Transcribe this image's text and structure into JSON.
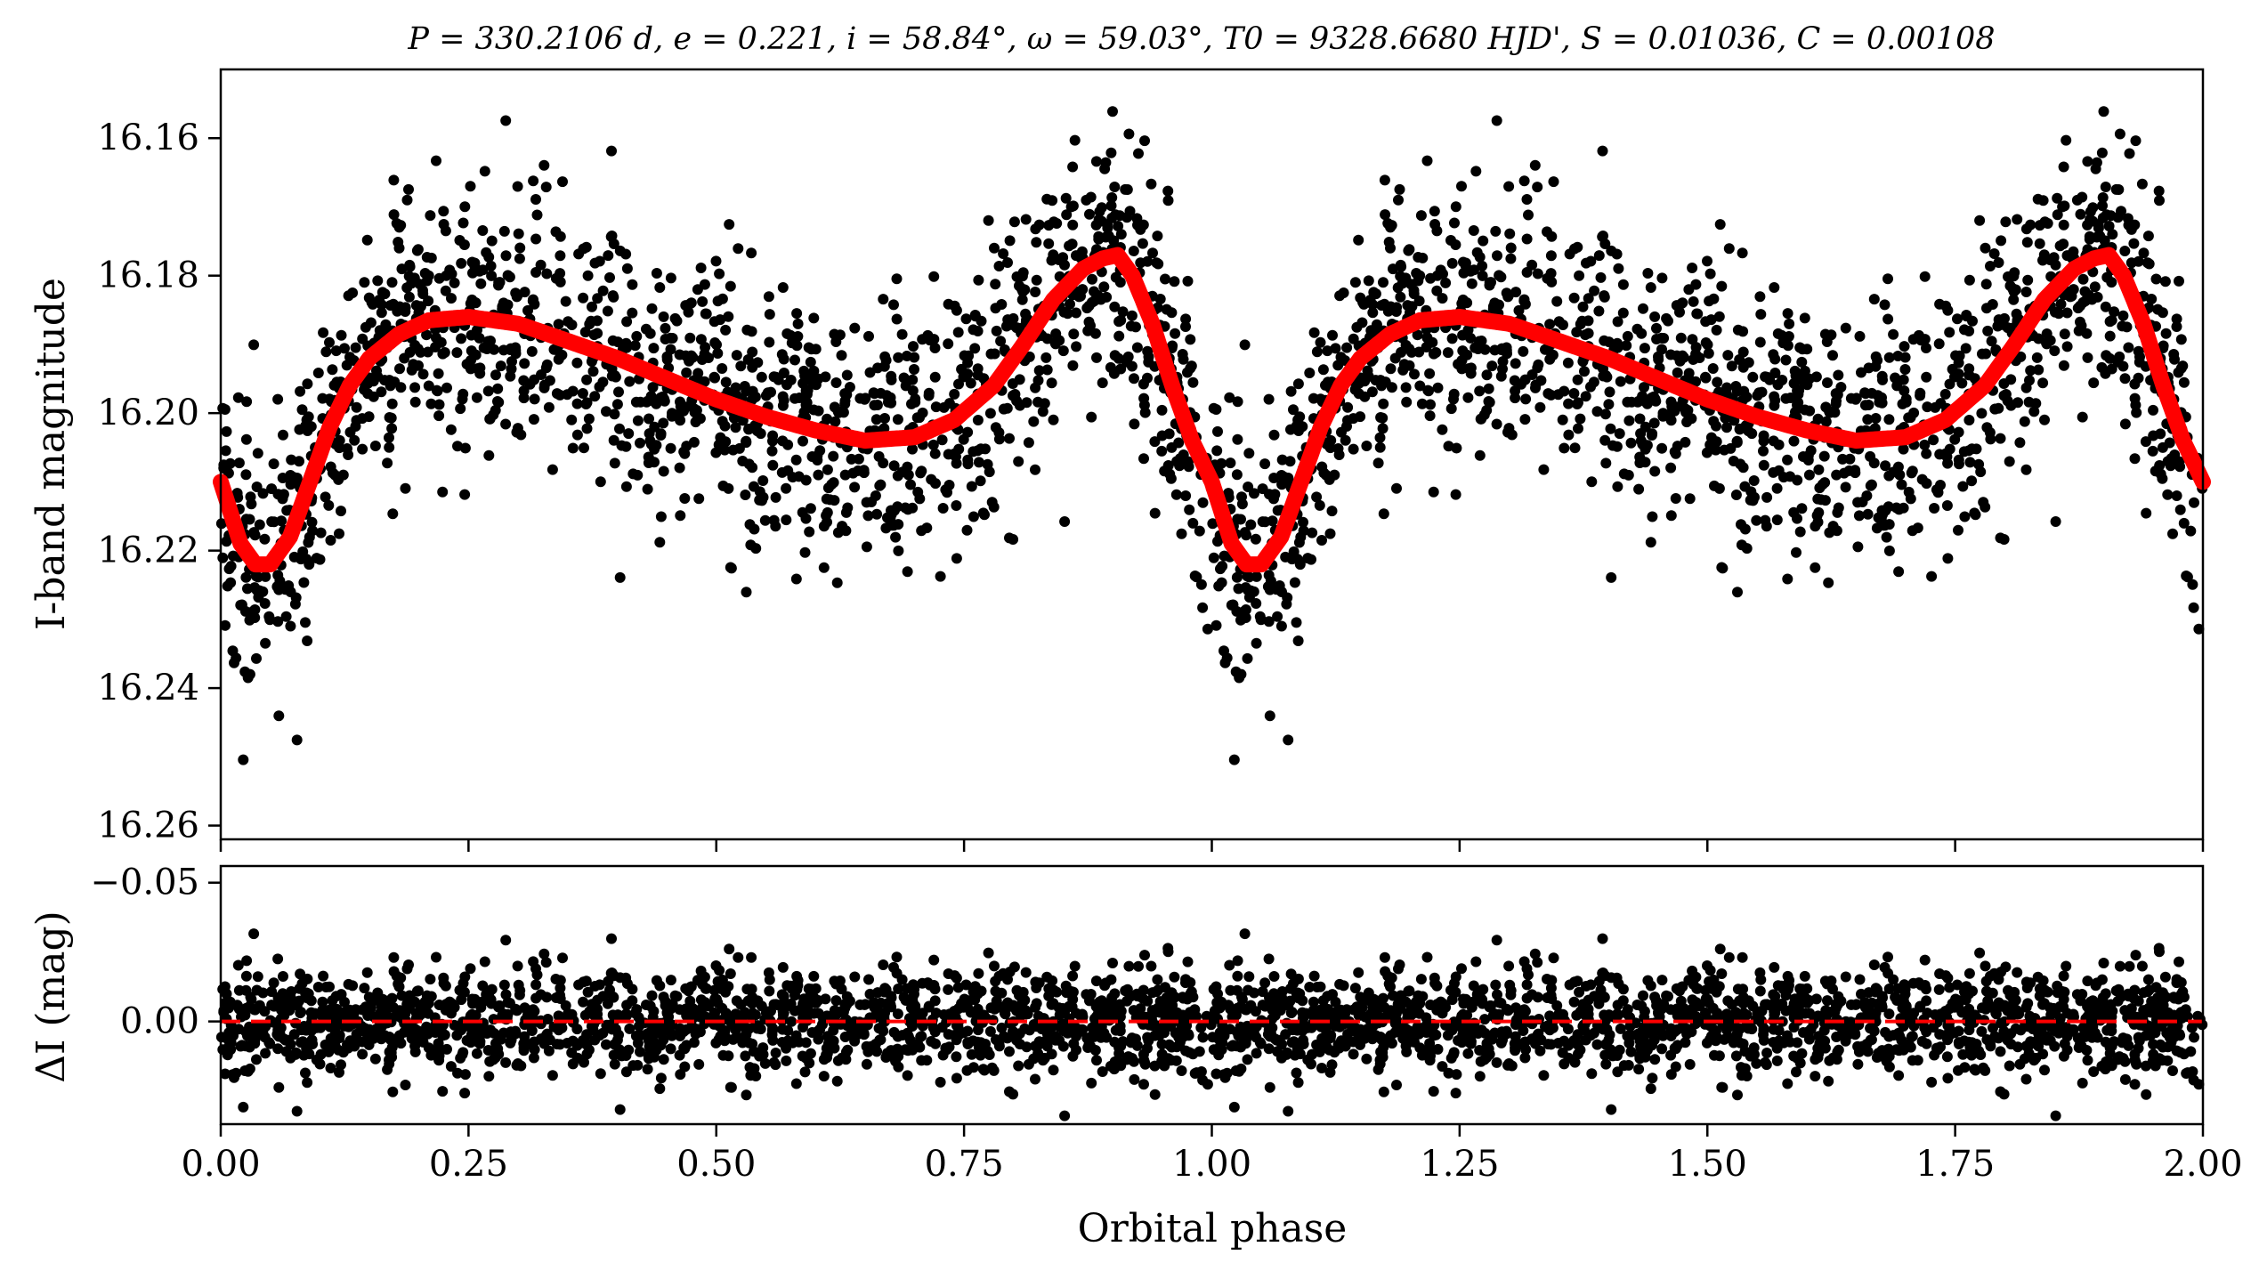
{
  "chart_data": [
    {
      "type": "scatter",
      "title": "P = 330.2106 d, e = 0.221, i = 58.84°, ω = 59.03°, T0 = 9328.6680 HJD', S = 0.01036, C = 0.00108",
      "xlabel": "",
      "ylabel": "I-band magnitude",
      "xlim": [
        0.0,
        2.0
      ],
      "ylim": [
        16.262,
        16.15
      ],
      "y_inverted": true,
      "yticks": [
        "16.16",
        "16.18",
        "16.20",
        "16.22",
        "16.24",
        "16.26"
      ],
      "ytick_values": [
        16.16,
        16.18,
        16.2,
        16.22,
        16.24,
        16.26
      ],
      "grid": false,
      "series": [
        {
          "kind": "points",
          "color": "#000000",
          "approx_count": 1500,
          "phase_range": [
            0.0,
            1.0
          ],
          "repeated_over_range": [
            1.0,
            2.0
          ]
        },
        {
          "kind": "model_line",
          "color": "#ff0000",
          "x": [
            0.0,
            0.02,
            0.035,
            0.05,
            0.07,
            0.09,
            0.11,
            0.13,
            0.15,
            0.18,
            0.21,
            0.25,
            0.3,
            0.35,
            0.4,
            0.45,
            0.5,
            0.55,
            0.6,
            0.65,
            0.7,
            0.74,
            0.78,
            0.81,
            0.84,
            0.87,
            0.89,
            0.905,
            0.92,
            0.94,
            0.96,
            0.98,
            1.0
          ],
          "y": [
            16.21,
            16.219,
            16.222,
            16.222,
            16.218,
            16.21,
            16.202,
            16.196,
            16.192,
            16.1885,
            16.1865,
            16.186,
            16.187,
            16.1895,
            16.192,
            16.195,
            16.198,
            16.2005,
            16.2025,
            16.204,
            16.2035,
            16.201,
            16.196,
            16.19,
            16.1835,
            16.179,
            16.1775,
            16.177,
            16.18,
            16.187,
            16.196,
            16.204,
            16.21
          ]
        }
      ]
    },
    {
      "type": "scatter",
      "xlabel": "Orbital phase",
      "ylabel": "ΔI (mag)",
      "xlim": [
        0.0,
        2.0
      ],
      "ylim": [
        0.037,
        -0.056
      ],
      "y_inverted": true,
      "xticks": [
        "0.00",
        "0.25",
        "0.50",
        "0.75",
        "1.00",
        "1.25",
        "1.50",
        "1.75",
        "2.00"
      ],
      "xtick_values": [
        0.0,
        0.25,
        0.5,
        0.75,
        1.0,
        1.25,
        1.5,
        1.75,
        2.0
      ],
      "yticks": [
        "−0.05",
        "0.00"
      ],
      "ytick_values": [
        -0.05,
        0.0
      ],
      "grid": false,
      "series": [
        {
          "kind": "residual_points",
          "color": "#000000",
          "approx_count": 1500,
          "scatter_sigma": 0.0095
        },
        {
          "kind": "zero_line",
          "style": "dashed",
          "color": "#ff0000",
          "y": 0.0
        }
      ]
    }
  ]
}
